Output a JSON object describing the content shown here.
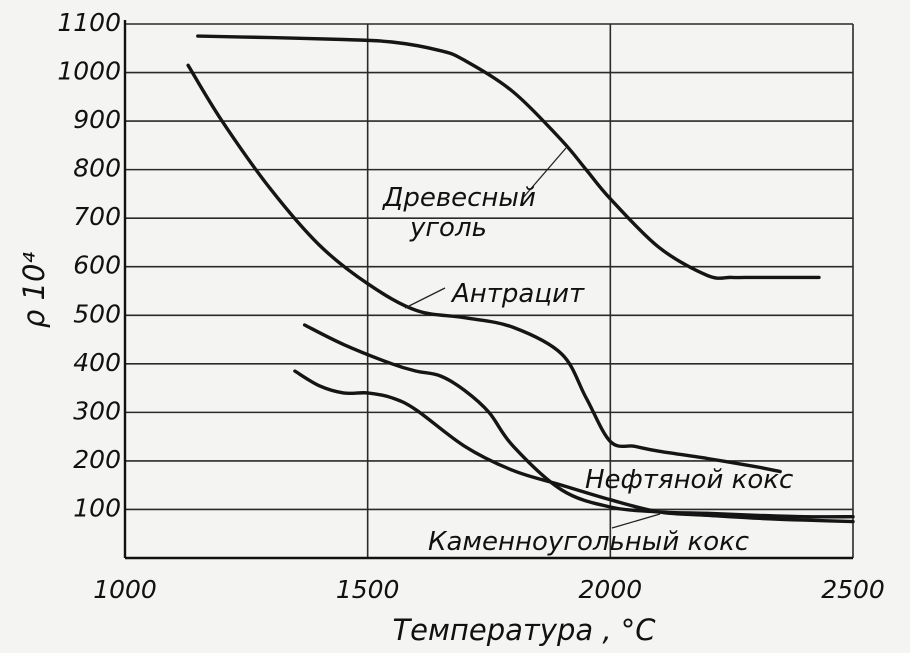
{
  "chart_data": {
    "type": "line",
    "title": "",
    "xlabel": "Температура , °C",
    "ylabel": "ρ 10⁴",
    "xlim": [
      1000,
      2500
    ],
    "ylim": [
      0,
      1100
    ],
    "x_ticks": [
      1000,
      1500,
      2000,
      2500
    ],
    "y_ticks": [
      100,
      200,
      300,
      400,
      500,
      600,
      700,
      800,
      900,
      1000,
      1100
    ],
    "grid": true,
    "series": [
      {
        "name": "Древесный уголь",
        "label_lines": [
          "Древесный",
          "уголь"
        ],
        "x": [
          1150,
          1300,
          1450,
          1550,
          1650,
          1700,
          1800,
          1900,
          1950,
          2000,
          2100,
          2200,
          2250,
          2300,
          2400,
          2430
        ],
        "y": [
          1075,
          1072,
          1068,
          1063,
          1045,
          1025,
          960,
          860,
          800,
          740,
          640,
          582,
          578,
          578,
          578,
          578
        ]
      },
      {
        "name": "Антрацит",
        "label_lines": [
          "Антрацит"
        ],
        "x": [
          1130,
          1200,
          1300,
          1400,
          1500,
          1600,
          1700,
          1800,
          1900,
          1950,
          2000,
          2050,
          2100,
          2200,
          2300,
          2350
        ],
        "y": [
          1015,
          900,
          760,
          645,
          565,
          510,
          495,
          475,
          420,
          330,
          240,
          230,
          220,
          205,
          188,
          178
        ]
      },
      {
        "name": "Нефтяной кокс",
        "label_lines": [
          "Нефтяной кокс"
        ],
        "x": [
          1370,
          1450,
          1550,
          1600,
          1650,
          1700,
          1750,
          1800,
          1900,
          2000,
          2100,
          2200,
          2300,
          2400,
          2500
        ],
        "y": [
          480,
          440,
          400,
          385,
          375,
          345,
          300,
          230,
          140,
          105,
          95,
          92,
          88,
          85,
          85
        ]
      },
      {
        "name": "Каменноугольный кокс",
        "label_lines": [
          "Каменноугольный кокс"
        ],
        "x": [
          1350,
          1400,
          1450,
          1500,
          1550,
          1600,
          1700,
          1800,
          1900,
          2000,
          2100,
          2200,
          2300,
          2400,
          2500
        ],
        "y": [
          385,
          355,
          340,
          340,
          330,
          305,
          230,
          180,
          150,
          120,
          95,
          88,
          82,
          78,
          75
        ]
      }
    ]
  }
}
